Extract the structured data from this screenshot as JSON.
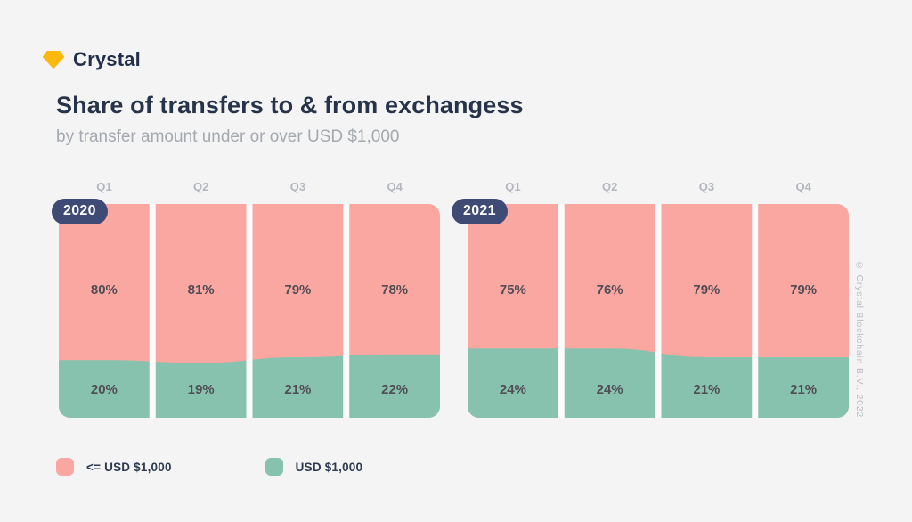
{
  "brand": {
    "name": "Crystal"
  },
  "header": {
    "title": "Share of transfers to & from exchangess",
    "subtitle": "by transfer amount under or over USD $1,000"
  },
  "watermark": "© Crystal Blockchain B.V., 2022",
  "colors": {
    "background": "#f4f4f5",
    "pink": "#fba7a1",
    "teal": "#86c2ae",
    "divider": "#fbfbfc",
    "badge": "#3f4b74",
    "brand_gold": "#fcb90b"
  },
  "legend": [
    {
      "label": "<= USD $1,000",
      "color": "#fba7a1"
    },
    {
      "label": "USD $1,000",
      "color": "#86c2ae"
    }
  ],
  "chart_data": {
    "type": "bar",
    "subtype": "stacked-100pct-share",
    "categories": [
      "Q1",
      "Q2",
      "Q3",
      "Q4"
    ],
    "legend_position": "bottom",
    "groups": [
      {
        "year": "2020",
        "series": [
          {
            "name": "<= USD $1,000",
            "values": [
              80,
              81,
              79,
              78
            ]
          },
          {
            "name": "USD $1,000",
            "values": [
              20,
              19,
              21,
              22
            ]
          }
        ]
      },
      {
        "year": "2021",
        "series": [
          {
            "name": "<= USD $1,000",
            "values": [
              75,
              76,
              79,
              79
            ]
          },
          {
            "name": "USD $1,000",
            "values": [
              24,
              24,
              21,
              21
            ]
          }
        ]
      }
    ]
  }
}
